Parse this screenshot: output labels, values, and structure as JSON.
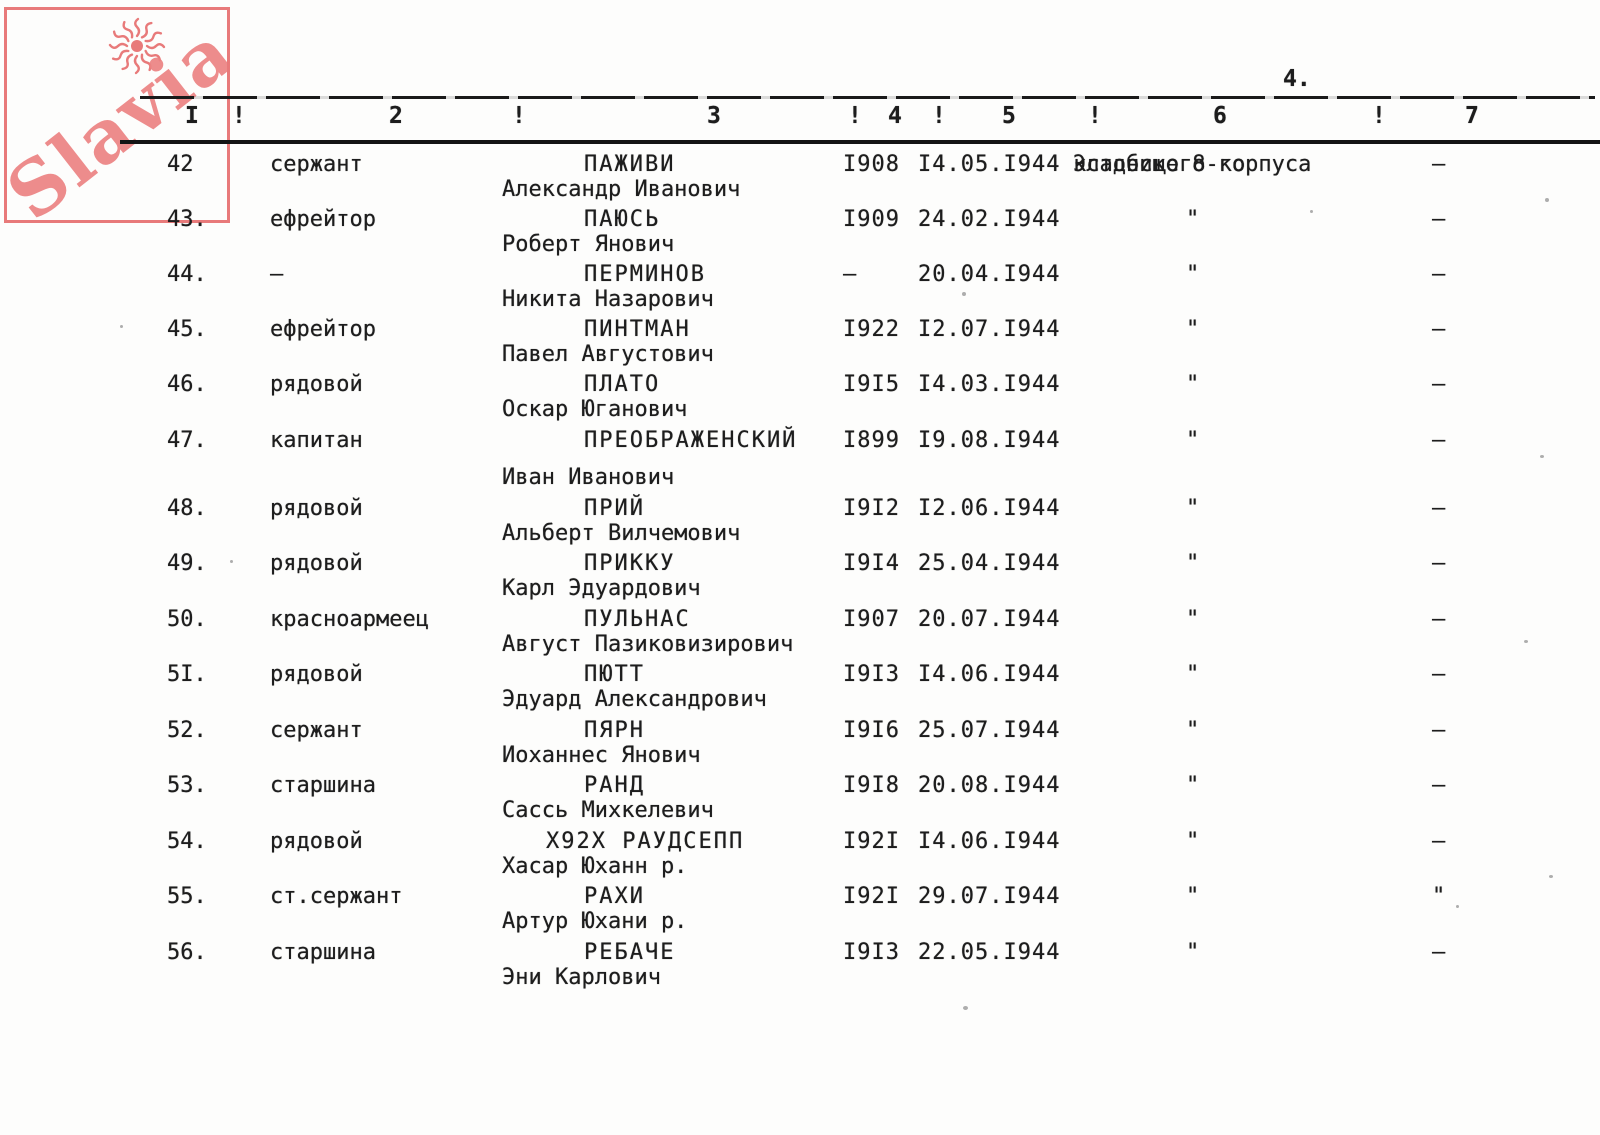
{
  "page": {
    "page_number": "4.",
    "stamp": {
      "text": "Slavia",
      "color": "#e87a7a"
    },
    "colors": {
      "ink": "#1d1d1d",
      "paper": "#fdfdfc",
      "stamp_red": "#e87a7a"
    }
  },
  "table": {
    "header": {
      "columns": [
        "I",
        "2",
        "3",
        "4",
        "5",
        "6",
        "7"
      ],
      "separator": "!"
    },
    "rows": [
      {
        "num": "42",
        "rank": "сержант",
        "surname": "ПАЖИВИ",
        "name": "Александр Иванович",
        "year": "I908",
        "date": "I4.05.I944",
        "burial": "кладбище 8-го",
        "burial2": "Эстонского корпуса",
        "award": "—"
      },
      {
        "num": "43.",
        "rank": "ефрейтор",
        "surname": "ПАЮСЬ",
        "name": "Роберт Янович",
        "year": "I909",
        "date": "24.02.I944",
        "burial": "\"",
        "award": "—"
      },
      {
        "num": "44.",
        "rank": "—",
        "surname": "ПЕРМИНОВ",
        "name": "Никита Назарович",
        "year": "—",
        "date": "20.04.I944",
        "burial": "\"",
        "award": "—"
      },
      {
        "num": "45.",
        "rank": "ефрейтор",
        "surname": "ПИНТМАН",
        "name": "Павел Августович",
        "year": "I922",
        "date": "I2.07.I944",
        "burial": "\"",
        "award": "—"
      },
      {
        "num": "46.",
        "rank": "рядовой",
        "surname": "ПЛАТО",
        "name": "Оскар Юганович",
        "year": "I9I5",
        "date": "I4.03.I944",
        "burial": "\"",
        "award": "—"
      },
      {
        "num": "47.",
        "rank": "капитан",
        "surname": "ПРЕОБРАЖЕНСКИЙ",
        "name": "Иван Иванович",
        "year": "I899",
        "date": "I9.08.I944",
        "burial": "\"",
        "award": "—"
      },
      {
        "num": "48.",
        "rank": "рядовой",
        "surname": "ПРИЙ",
        "name": "Альберт Вилчемович",
        "year": "I9I2",
        "date": "I2.06.I944",
        "burial": "\"",
        "award": "—"
      },
      {
        "num": "49.",
        "rank": "рядовой",
        "surname": "ПРИККУ",
        "name": "Карл Эдуардович",
        "year": "I9I4",
        "date": "25.04.I944",
        "burial": "\"",
        "award": "—"
      },
      {
        "num": "50.",
        "rank": "красноармеец",
        "surname": "ПУЛЬНАС",
        "name": "Август Пазиковизирович",
        "year": "I907",
        "date": "20.07.I944",
        "burial": "\"",
        "award": "—"
      },
      {
        "num": "5I.",
        "rank": "рядовой",
        "surname": "ПЮТТ",
        "name": "Эдуард Александрович",
        "year": "I9I3",
        "date": "I4.06.I944",
        "burial": "\"",
        "award": "—"
      },
      {
        "num": "52.",
        "rank": "сержант",
        "surname": "ПЯРН",
        "name": "Иоханнес Янович",
        "year": "I9I6",
        "date": "25.07.I944",
        "burial": "\"",
        "award": "—"
      },
      {
        "num": "53.",
        "rank": "старшина",
        "surname": "РАНД",
        "name": "Сассь Михкелевич",
        "year": "I9I8",
        "date": "20.08.I944",
        "burial": "\"",
        "award": "—"
      },
      {
        "num": "54.",
        "rank": "рядовой",
        "surname": "Х92Х РАУДСЕПП",
        "name": "Хасар Юханн р.",
        "year": "I92I",
        "date": "I4.06.I944",
        "burial": "\"",
        "award": "—"
      },
      {
        "num": "55.",
        "rank": "ст.сержант",
        "surname": "РАХИ",
        "name": "Артур Юхани р.",
        "year": "I92I",
        "date": "29.07.I944",
        "burial": "\"",
        "award": "\""
      },
      {
        "num": "56.",
        "rank": "старшина",
        "surname": "РЕБАЧЕ",
        "name": "Эни Карлович",
        "year": "I9I3",
        "date": "22.05.I944",
        "burial": "\"",
        "award": "—"
      }
    ]
  }
}
